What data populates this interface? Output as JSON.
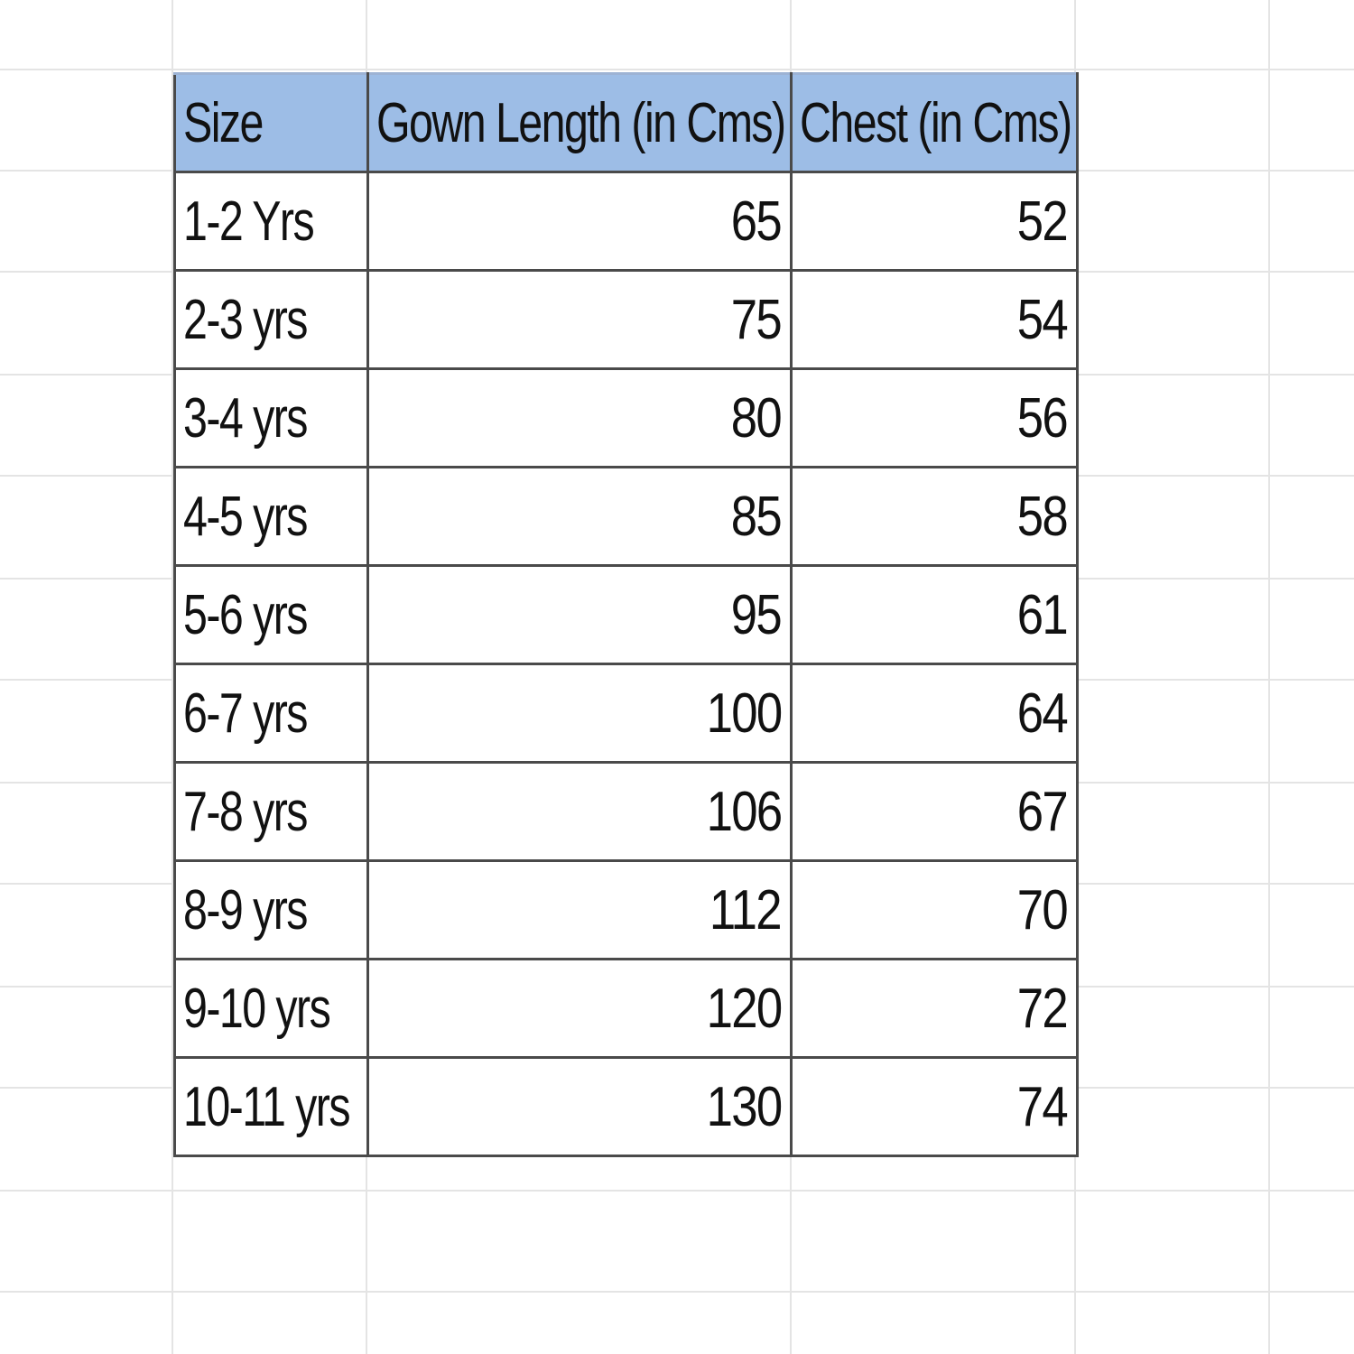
{
  "table": {
    "headers": [
      "Size",
      "Gown Length (in Cms)",
      "Chest (in Cms)"
    ],
    "rows": [
      {
        "size": "1-2 Yrs",
        "length": "65",
        "chest": "52"
      },
      {
        "size": "2-3 yrs",
        "length": "75",
        "chest": "54"
      },
      {
        "size": "3-4 yrs",
        "length": "80",
        "chest": "56"
      },
      {
        "size": "4-5 yrs",
        "length": "85",
        "chest": "58"
      },
      {
        "size": "5-6 yrs",
        "length": "95",
        "chest": "61"
      },
      {
        "size": "6-7 yrs",
        "length": "100",
        "chest": "64"
      },
      {
        "size": "7-8 yrs",
        "length": "106",
        "chest": "67"
      },
      {
        "size": "8-9 yrs",
        "length": "112",
        "chest": "70"
      },
      {
        "size": "9-10 yrs",
        "length": "120",
        "chest": "72"
      },
      {
        "size": "10-11 yrs",
        "length": "130",
        "chest": "74"
      }
    ]
  },
  "colors": {
    "header_fill": "#9dbde6",
    "border": "#4a4a4a",
    "gridline": "#e4e4e4"
  }
}
